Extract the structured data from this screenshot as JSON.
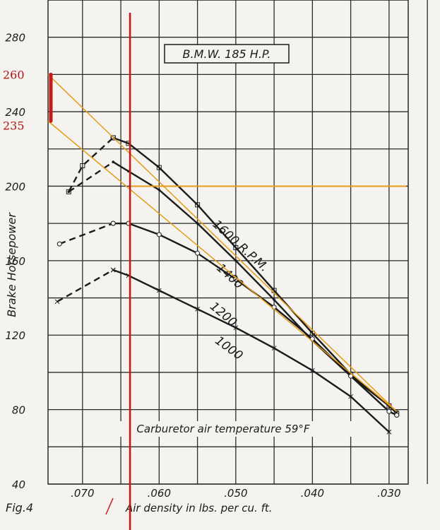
{
  "chart_data": {
    "type": "line",
    "title": "B.M.W. 185 H.P.",
    "xlabel": "Air density in lbs. per cu. ft.",
    "ylabel": "Brake Horsepower",
    "xlim": [
      0.0745,
      0.0275
    ],
    "ylim": [
      40,
      300
    ],
    "x_reversed": true,
    "x_ticks": [
      0.07,
      0.06,
      0.05,
      0.04,
      0.03
    ],
    "x_tick_labels": [
      ".070",
      ".060",
      ".050",
      ".040",
      ".030"
    ],
    "y_ticks": [
      40,
      80,
      120,
      160,
      200,
      240,
      280
    ],
    "y_tick_labels": [
      "40",
      "80",
      "120",
      "160",
      "200",
      "240",
      "280"
    ],
    "grid": true,
    "annotation": "Carburetor air temperature 59°F",
    "figure_label": "Fig.4",
    "series": [
      {
        "name": "1600 R.P.M.",
        "marker": "square",
        "dashed_segment": [
          [
            0.0718,
            197
          ],
          [
            0.07,
            211
          ],
          [
            0.066,
            226
          ]
        ],
        "x": [
          0.066,
          0.064,
          0.06,
          0.055,
          0.05,
          0.045,
          0.04,
          0.035,
          0.03,
          0.029
        ],
        "y": [
          226,
          223,
          210,
          190,
          167,
          144,
          121,
          99,
          82,
          78
        ]
      },
      {
        "name": "1400",
        "marker": "dot",
        "dashed_segment": [
          [
            0.0718,
            197
          ],
          [
            0.066,
            213
          ]
        ],
        "x": [
          0.066,
          0.064,
          0.06,
          0.055,
          0.05,
          0.045,
          0.04,
          0.035,
          0.03,
          0.029
        ],
        "y": [
          213,
          208,
          198,
          180,
          160,
          139,
          117,
          98,
          82,
          79
        ]
      },
      {
        "name": "1200",
        "marker": "circle",
        "dashed_segment": [
          [
            0.073,
            169
          ],
          [
            0.066,
            180
          ]
        ],
        "x": [
          0.066,
          0.064,
          0.06,
          0.055,
          0.05,
          0.045,
          0.04,
          0.035,
          0.03,
          0.029
        ],
        "y": [
          180,
          180,
          174,
          164,
          150,
          135,
          118,
          98,
          79,
          77
        ]
      },
      {
        "name": "1000",
        "marker": "cross",
        "dashed_segment": [
          [
            0.0733,
            138
          ],
          [
            0.066,
            155
          ]
        ],
        "x": [
          0.066,
          0.064,
          0.06,
          0.055,
          0.05,
          0.045,
          0.04,
          0.035,
          0.03
        ],
        "y": [
          155,
          152,
          144,
          134,
          124,
          113,
          101,
          87,
          68
        ]
      }
    ],
    "overlay": {
      "red_line_x": 0.0638,
      "orange_hline_y": 200,
      "orange_lines": [
        {
          "from": [
            0.0745,
            260
          ],
          "to": [
            0.029,
            79
          ]
        },
        {
          "from": [
            0.0745,
            235
          ],
          "to": [
            0.029,
            79
          ]
        }
      ],
      "bracket_range": [
        235,
        260
      ],
      "bracket_labels": [
        "260",
        "235"
      ],
      "colors": {
        "red": "#c41a1a",
        "orange": "#e69a16",
        "ink": "#1b1b1b",
        "grid": "#2b2b2b"
      }
    }
  }
}
